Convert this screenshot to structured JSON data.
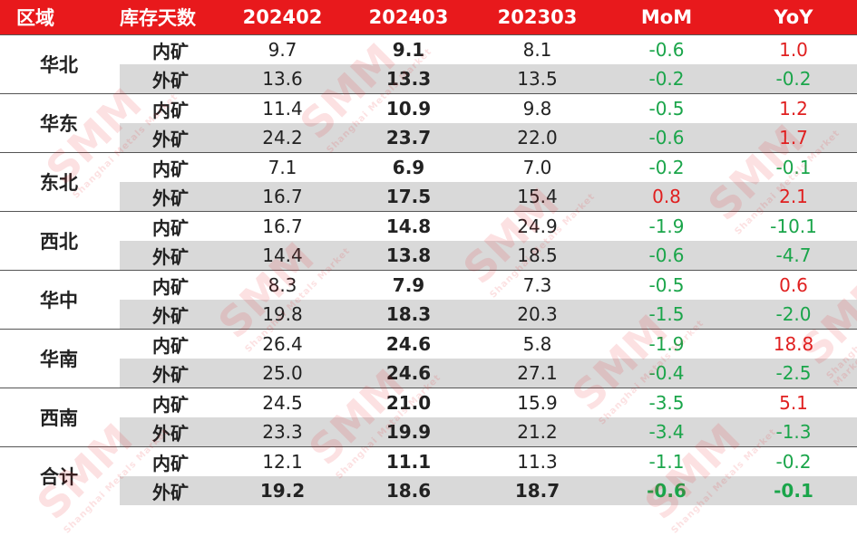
{
  "headers": [
    "区域",
    "库存天数",
    "202402",
    "202403",
    "202303",
    "MoM",
    "YoY"
  ],
  "watermark": "SMM",
  "watermark_sub": "Shanghai Metals Market",
  "colors": {
    "header_bg": "#e8191c",
    "positive": "#e02020",
    "negative": "#1aa54a",
    "alt_row": "#d9d9d9"
  },
  "rows": [
    {
      "region": "华北",
      "items": [
        {
          "type": "内矿",
          "v1": "9.7",
          "v2": "9.1",
          "v3": "8.1",
          "mom": "-0.6",
          "yoy": "1.0"
        },
        {
          "type": "外矿",
          "v1": "13.6",
          "v2": "13.3",
          "v3": "13.5",
          "mom": "-0.2",
          "yoy": "-0.2"
        }
      ]
    },
    {
      "region": "华东",
      "items": [
        {
          "type": "内矿",
          "v1": "11.4",
          "v2": "10.9",
          "v3": "9.8",
          "mom": "-0.5",
          "yoy": "1.2"
        },
        {
          "type": "外矿",
          "v1": "24.2",
          "v2": "23.7",
          "v3": "22.0",
          "mom": "-0.6",
          "yoy": "1.7"
        }
      ]
    },
    {
      "region": "东北",
      "items": [
        {
          "type": "内矿",
          "v1": "7.1",
          "v2": "6.9",
          "v3": "7.0",
          "mom": "-0.2",
          "yoy": "-0.1"
        },
        {
          "type": "外矿",
          "v1": "16.7",
          "v2": "17.5",
          "v3": "15.4",
          "mom": "0.8",
          "yoy": "2.1"
        }
      ]
    },
    {
      "region": "西北",
      "items": [
        {
          "type": "内矿",
          "v1": "16.7",
          "v2": "14.8",
          "v3": "24.9",
          "mom": "-1.9",
          "yoy": "-10.1"
        },
        {
          "type": "外矿",
          "v1": "14.4",
          "v2": "13.8",
          "v3": "18.5",
          "mom": "-0.6",
          "yoy": "-4.7"
        }
      ]
    },
    {
      "region": "华中",
      "items": [
        {
          "type": "内矿",
          "v1": "8.3",
          "v2": "7.9",
          "v3": "7.3",
          "mom": "-0.5",
          "yoy": "0.6"
        },
        {
          "type": "外矿",
          "v1": "19.8",
          "v2": "18.3",
          "v3": "20.3",
          "mom": "-1.5",
          "yoy": "-2.0"
        }
      ]
    },
    {
      "region": "华南",
      "items": [
        {
          "type": "内矿",
          "v1": "26.4",
          "v2": "24.6",
          "v3": "5.8",
          "mom": "-1.9",
          "yoy": "18.8"
        },
        {
          "type": "外矿",
          "v1": "25.0",
          "v2": "24.6",
          "v3": "27.1",
          "mom": "-0.4",
          "yoy": "-2.5"
        }
      ]
    },
    {
      "region": "西南",
      "items": [
        {
          "type": "内矿",
          "v1": "24.5",
          "v2": "21.0",
          "v3": "15.9",
          "mom": "-3.5",
          "yoy": "5.1"
        },
        {
          "type": "外矿",
          "v1": "23.3",
          "v2": "19.9",
          "v3": "21.2",
          "mom": "-3.4",
          "yoy": "-1.3"
        }
      ]
    },
    {
      "region": "合计",
      "total": true,
      "items": [
        {
          "type": "内矿",
          "v1": "12.1",
          "v2": "11.1",
          "v3": "11.3",
          "mom": "-1.1",
          "yoy": "-0.2"
        },
        {
          "type": "外矿",
          "v1": "19.2",
          "v2": "18.6",
          "v3": "18.7",
          "mom": "-0.6",
          "yoy": "-0.1"
        }
      ]
    }
  ]
}
